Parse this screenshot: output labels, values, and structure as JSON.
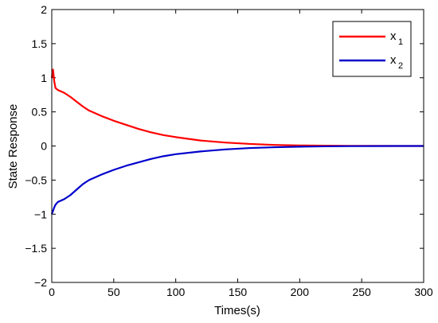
{
  "chart_data": {
    "type": "line",
    "title": "",
    "xlabel": "Times(s)",
    "ylabel": "State Response",
    "xlim": [
      0,
      300
    ],
    "ylim": [
      -2,
      2
    ],
    "xticks": [
      0,
      50,
      100,
      150,
      200,
      250,
      300
    ],
    "yticks": [
      -2,
      -1.5,
      -1,
      -0.5,
      0,
      0.5,
      1,
      1.5,
      2
    ],
    "grid": false,
    "legend_position": "top-right",
    "series": [
      {
        "name": "x1",
        "legend_main": "x",
        "legend_sub": "1",
        "color": "#ff0000",
        "x": [
          0,
          1,
          2,
          3,
          5,
          10,
          15,
          20,
          25,
          30,
          40,
          50,
          60,
          70,
          80,
          90,
          100,
          120,
          140,
          160,
          180,
          200,
          220,
          240,
          260,
          280,
          300
        ],
        "y": [
          1.0,
          1.12,
          0.95,
          0.85,
          0.82,
          0.78,
          0.72,
          0.65,
          0.58,
          0.52,
          0.44,
          0.37,
          0.31,
          0.25,
          0.2,
          0.16,
          0.13,
          0.08,
          0.05,
          0.03,
          0.015,
          0.008,
          0.004,
          0.002,
          0.001,
          0.0,
          0.0
        ]
      },
      {
        "name": "x2",
        "legend_main": "x",
        "legend_sub": "2",
        "color": "#0000cc",
        "x": [
          0,
          1,
          2,
          3,
          5,
          10,
          15,
          20,
          25,
          30,
          40,
          50,
          60,
          70,
          80,
          90,
          100,
          120,
          140,
          160,
          180,
          200,
          220,
          240,
          260,
          280,
          300
        ],
        "y": [
          -1.0,
          -0.95,
          -0.9,
          -0.86,
          -0.82,
          -0.78,
          -0.72,
          -0.64,
          -0.56,
          -0.5,
          -0.42,
          -0.35,
          -0.29,
          -0.24,
          -0.19,
          -0.15,
          -0.12,
          -0.08,
          -0.05,
          -0.03,
          -0.018,
          -0.01,
          -0.005,
          -0.002,
          -0.001,
          0.0,
          0.0
        ]
      }
    ]
  }
}
